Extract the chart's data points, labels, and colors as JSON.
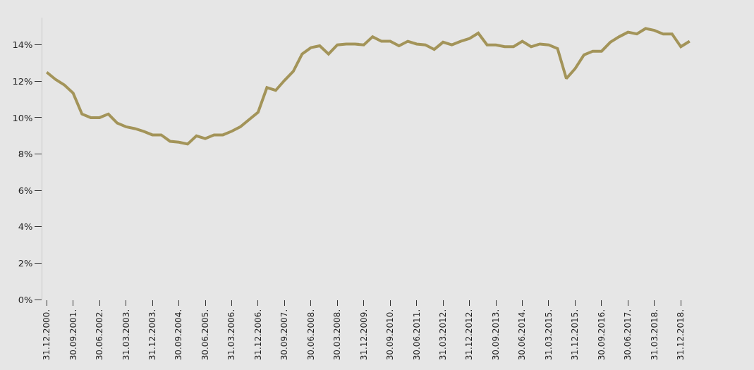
{
  "chart_data": {
    "type": "line",
    "categories": [
      "31.12.2000.",
      null,
      null,
      "30.09.2001.",
      null,
      null,
      "30.06.2002.",
      null,
      null,
      "31.03.2003.",
      null,
      null,
      "31.12.2003.",
      null,
      null,
      "30.09.2004.",
      null,
      null,
      "30.06.2005.",
      null,
      null,
      "31.03.2006.",
      null,
      null,
      "31.12.2006.",
      null,
      null,
      "30.09.2007.",
      null,
      null,
      "30.06.2008.",
      null,
      null,
      "30.03.2008.",
      null,
      null,
      "31.12.2009.",
      null,
      null,
      "30.09.2010.",
      null,
      null,
      "30.06.2011.",
      null,
      null,
      "31.03.2012.",
      null,
      null,
      "31.12.2012.",
      null,
      null,
      "30.09.2013.",
      null,
      null,
      "30.06.2014.",
      null,
      null,
      "31.03.2015.",
      null,
      null,
      "31.12.2015.",
      null,
      null,
      "30.09.2016.",
      null,
      null,
      "30.06.2017.",
      null,
      null,
      "31.03.2018.",
      null,
      null,
      "31.12.2018.",
      null
    ],
    "series": [
      {
        "color": "#a39459",
        "values": [
          12.5,
          12.1,
          11.8,
          11.35,
          10.2,
          10.0,
          10.0,
          10.2,
          9.7,
          9.5,
          9.4,
          9.25,
          9.05,
          9.05,
          8.7,
          8.65,
          8.55,
          9.0,
          8.85,
          9.05,
          9.05,
          9.25,
          9.5,
          9.9,
          10.3,
          11.65,
          11.5,
          12.05,
          12.55,
          13.5,
          13.85,
          13.95,
          13.5,
          14.0,
          14.05,
          14.05,
          14.0,
          14.45,
          14.2,
          14.2,
          13.95,
          14.2,
          14.05,
          14.0,
          13.75,
          14.15,
          14.0,
          14.2,
          14.35,
          14.65,
          14.0,
          14.0,
          13.9,
          13.9,
          14.2,
          13.9,
          14.05,
          14.0,
          13.8,
          12.15,
          12.7,
          13.45,
          13.65,
          13.65,
          14.15,
          14.45,
          14.7,
          14.6,
          14.9,
          14.8,
          14.6,
          14.6,
          13.9,
          14.2
        ]
      }
    ],
    "yticks": [
      {
        "value": 0,
        "label": "0%"
      },
      {
        "value": 2,
        "label": "2%"
      },
      {
        "value": 4,
        "label": "4%"
      },
      {
        "value": 6,
        "label": "6%"
      },
      {
        "value": 8,
        "label": "8%"
      },
      {
        "value": 10,
        "label": "10%"
      },
      {
        "value": 12,
        "label": "12%"
      },
      {
        "value": 14,
        "label": "14%"
      }
    ],
    "ylim": [
      0,
      15.5
    ],
    "grid": false,
    "marker": "none",
    "line_style": "solid"
  }
}
